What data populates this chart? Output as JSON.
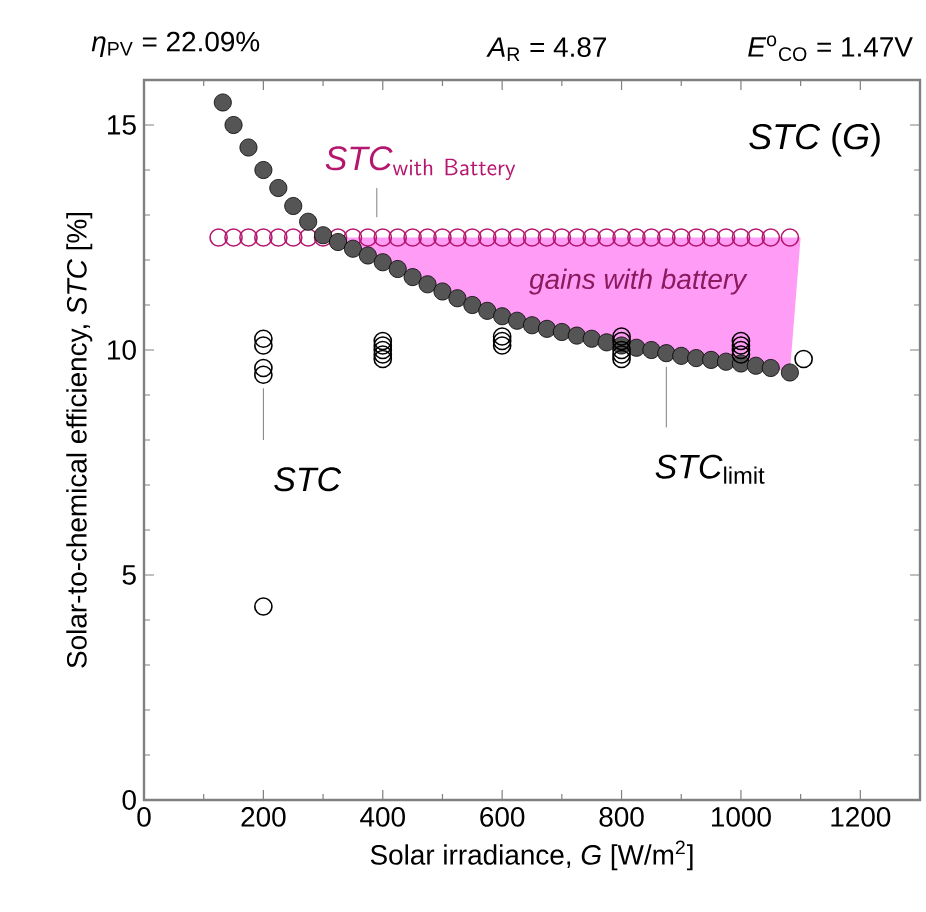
{
  "chart_data": {
    "type": "scatter",
    "title": "*η*$_{PV}$ = 22.09%",
    "xlabel": "Solar irradiance, *G* [W/m$^{2}$]",
    "ylabel": "Solar-to-chemical efficiency, *STC* [%]",
    "xlim": [
      0,
      1300
    ],
    "ylim": [
      0,
      16
    ],
    "xticks": [
      0,
      200,
      400,
      600,
      800,
      1000,
      1200
    ],
    "yticks": [
      0,
      5,
      10,
      15
    ],
    "series": [
      {
        "type": "area",
        "color": "#ff9cf5",
        "x": [
          300,
          325,
          350,
          375,
          400,
          425,
          450,
          475,
          500,
          525,
          550,
          575,
          600,
          625,
          650,
          675,
          700,
          725,
          750,
          775,
          800,
          825,
          850,
          875,
          900,
          925,
          950,
          975,
          1000,
          1025,
          1050,
          1082,
          1100
        ],
        "values": [
          12.5,
          12.5,
          12.5,
          12.5,
          12.5,
          12.5,
          12.5,
          12.5,
          12.5,
          12.5,
          12.5,
          12.5,
          12.5,
          12.5,
          12.5,
          12.5,
          12.5,
          12.5,
          12.5,
          12.5,
          12.5,
          12.5,
          12.5,
          12.5,
          12.5,
          12.5,
          12.5,
          12.5,
          12.5,
          12.5,
          12.5,
          12.5,
          12.5
        ]
      },
      {
        "marker": "circle",
        "color": "#b5176f",
        "x": [
          125,
          150,
          175,
          200,
          225,
          250,
          275,
          300,
          325,
          350,
          375,
          400,
          425,
          450,
          475,
          500,
          525,
          550,
          575,
          600,
          625,
          650,
          675,
          700,
          725,
          750,
          775,
          800,
          825,
          850,
          875,
          900,
          925,
          950,
          975,
          1000,
          1025,
          1050,
          1082
        ],
        "values": [
          12.5,
          12.5,
          12.5,
          12.5,
          12.5,
          12.5,
          12.5,
          12.5,
          12.5,
          12.5,
          12.5,
          12.5,
          12.5,
          12.5,
          12.5,
          12.5,
          12.5,
          12.5,
          12.5,
          12.5,
          12.5,
          12.5,
          12.5,
          12.5,
          12.5,
          12.5,
          12.5,
          12.5,
          12.5,
          12.5,
          12.5,
          12.5,
          12.5,
          12.5,
          12.5,
          12.5,
          12.5,
          12.5,
          12.5
        ]
      },
      {
        "marker": "circle",
        "color": "#555555",
        "x": [
          132,
          150,
          175,
          200,
          225,
          250,
          275,
          300,
          325,
          350,
          375,
          400,
          425,
          450,
          475,
          500,
          525,
          550,
          575,
          600,
          625,
          650,
          675,
          700,
          725,
          750,
          775,
          800,
          825,
          850,
          875,
          900,
          925,
          950,
          975,
          1000,
          1025,
          1050,
          1082
        ],
        "values": [
          15.5,
          15.0,
          14.5,
          14.0,
          13.6,
          13.2,
          12.85,
          12.55,
          12.4,
          12.25,
          12.1,
          11.95,
          11.8,
          11.62,
          11.46,
          11.3,
          11.15,
          11.0,
          10.87,
          10.75,
          10.65,
          10.55,
          10.47,
          10.4,
          10.32,
          10.25,
          10.17,
          10.1,
          10.05,
          10.0,
          9.93,
          9.87,
          9.82,
          9.78,
          9.74,
          9.7,
          9.65,
          9.6,
          9.5
        ]
      },
      {
        "marker": "circle",
        "color": "#000000",
        "x": [
          200,
          200,
          200,
          200,
          200,
          400,
          400,
          400,
          400,
          400,
          600,
          600,
          600,
          800,
          800,
          800,
          800,
          800,
          1000,
          1000,
          1000,
          1000,
          1105
        ],
        "values": [
          10.25,
          10.1,
          9.6,
          9.45,
          4.3,
          10.2,
          10.1,
          10.0,
          9.9,
          9.8,
          10.3,
          10.2,
          10.1,
          10.3,
          10.2,
          10.0,
          9.9,
          9.8,
          10.2,
          10.1,
          10.0,
          9.9,
          9.8
        ]
      }
    ],
    "annotations": [
      "*A*$_{R}$ = 4.87",
      "*E*$^{o}$$_{CO}$ = 1.47V",
      "*STC* (*G*)",
      "*gains with battery*",
      {
        "text": "\\mathsf{\\mathit{STC}}_{\\mathsf{with\\ Battery}}",
        "x": 390,
        "y": 12.5
      },
      {
        "text": "*STC*",
        "x": 200,
        "y": 9.45
      },
      {
        "text": "*STC*$_{limit}$",
        "x": 875,
        "y": 9.93
      }
    ]
  }
}
